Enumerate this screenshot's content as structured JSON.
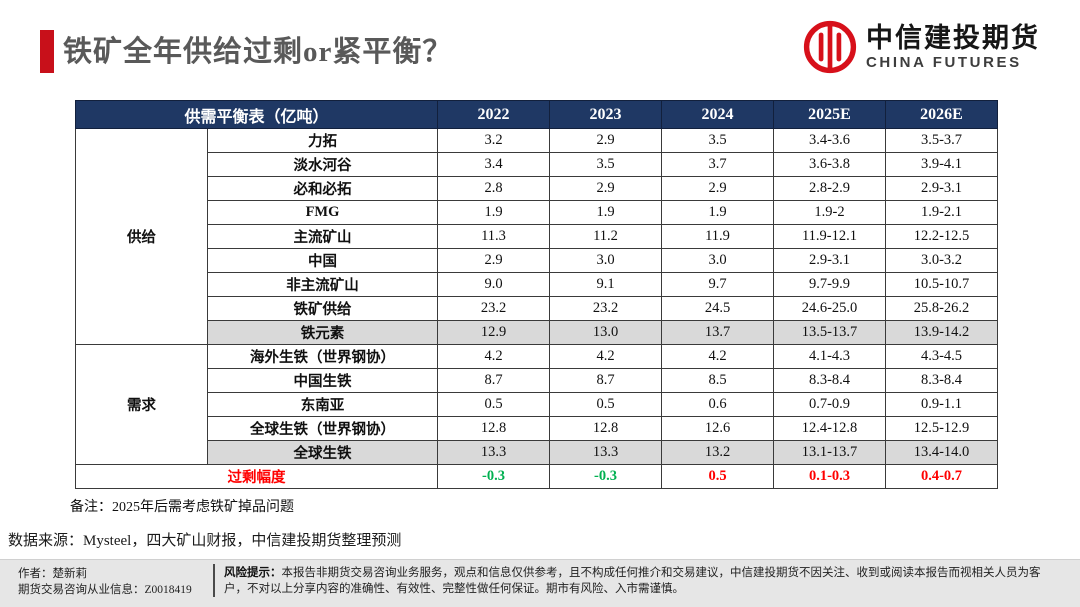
{
  "header": {
    "title": "铁矿全年供给过剩or紧平衡？",
    "logo": {
      "cn": "中信建投期货",
      "en": "CHINA FUTURES"
    }
  },
  "table": {
    "corner_label": "供需平衡表（亿吨）",
    "year_columns": [
      "2022",
      "2023",
      "2024",
      "2025E",
      "2026E"
    ],
    "groups": [
      {
        "label": "供给",
        "rows": [
          {
            "name": "力拓",
            "values": [
              "3.2",
              "2.9",
              "3.5",
              "3.4-3.6",
              "3.5-3.7"
            ],
            "shaded": false
          },
          {
            "name": "淡水河谷",
            "values": [
              "3.4",
              "3.5",
              "3.7",
              "3.6-3.8",
              "3.9-4.1"
            ],
            "shaded": false
          },
          {
            "name": "必和必拓",
            "values": [
              "2.8",
              "2.9",
              "2.9",
              "2.8-2.9",
              "2.9-3.1"
            ],
            "shaded": false
          },
          {
            "name": "FMG",
            "values": [
              "1.9",
              "1.9",
              "1.9",
              "1.9-2",
              "1.9-2.1"
            ],
            "shaded": false
          },
          {
            "name": "主流矿山",
            "values": [
              "11.3",
              "11.2",
              "11.9",
              "11.9-12.1",
              "12.2-12.5"
            ],
            "shaded": false
          },
          {
            "name": "中国",
            "values": [
              "2.9",
              "3.0",
              "3.0",
              "2.9-3.1",
              "3.0-3.2"
            ],
            "shaded": false
          },
          {
            "name": "非主流矿山",
            "values": [
              "9.0",
              "9.1",
              "9.7",
              "9.7-9.9",
              "10.5-10.7"
            ],
            "shaded": false
          },
          {
            "name": "铁矿供给",
            "values": [
              "23.2",
              "23.2",
              "24.5",
              "24.6-25.0",
              "25.8-26.2"
            ],
            "shaded": false
          },
          {
            "name": "铁元素",
            "values": [
              "12.9",
              "13.0",
              "13.7",
              "13.5-13.7",
              "13.9-14.2"
            ],
            "shaded": true
          }
        ]
      },
      {
        "label": "需求",
        "rows": [
          {
            "name": "海外生铁（世界钢协）",
            "values": [
              "4.2",
              "4.2",
              "4.2",
              "4.1-4.3",
              "4.3-4.5"
            ],
            "shaded": false
          },
          {
            "name": "中国生铁",
            "values": [
              "8.7",
              "8.7",
              "8.5",
              "8.3-8.4",
              "8.3-8.4"
            ],
            "shaded": false
          },
          {
            "name": "东南亚",
            "values": [
              "0.5",
              "0.5",
              "0.6",
              "0.7-0.9",
              "0.9-1.1"
            ],
            "shaded": false
          },
          {
            "name": "全球生铁（世界钢协）",
            "values": [
              "12.8",
              "12.8",
              "12.6",
              "12.4-12.8",
              "12.5-12.9"
            ],
            "shaded": false
          },
          {
            "name": "全球生铁",
            "values": [
              "13.3",
              "13.3",
              "13.2",
              "13.1-13.7",
              "13.4-14.0"
            ],
            "shaded": true
          }
        ]
      }
    ],
    "summary_row": {
      "label": "过剩幅度",
      "label_color": "#ff0000",
      "values": [
        "-0.3",
        "-0.3",
        "0.5",
        "0.1-0.3",
        "0.4-0.7"
      ],
      "value_colors": [
        "#00b050",
        "#00b050",
        "#ff0000",
        "#ff0000",
        "#ff0000"
      ]
    }
  },
  "notes": {
    "remark": "备注：2025年后需考虑铁矿掉品问题",
    "source": "数据来源：Mysteel，四大矿山财报，中信建投期货整理预测"
  },
  "footer": {
    "author_line1": "作者：楚新莉",
    "author_line2": "期货交易咨询从业信息：Z0018419",
    "risk_label": "风险提示：",
    "risk_text": "本报告非期货交易咨询业务服务，观点和信息仅供参考，且不构成任何推介和交易建议，中信建投期货不因关注、收到或阅读本报告而视相关人员为客户，不对以上分享内容的准确性、有效性、完整性做任何保证。期市有风险、入市需谨慎。"
  },
  "colors": {
    "accent_red": "#c8101a",
    "header_navy": "#1f3864",
    "shaded_gray": "#d9d9d9",
    "surplus_red": "#ff0000",
    "deficit_green": "#00b050",
    "title_gray": "#595959"
  }
}
